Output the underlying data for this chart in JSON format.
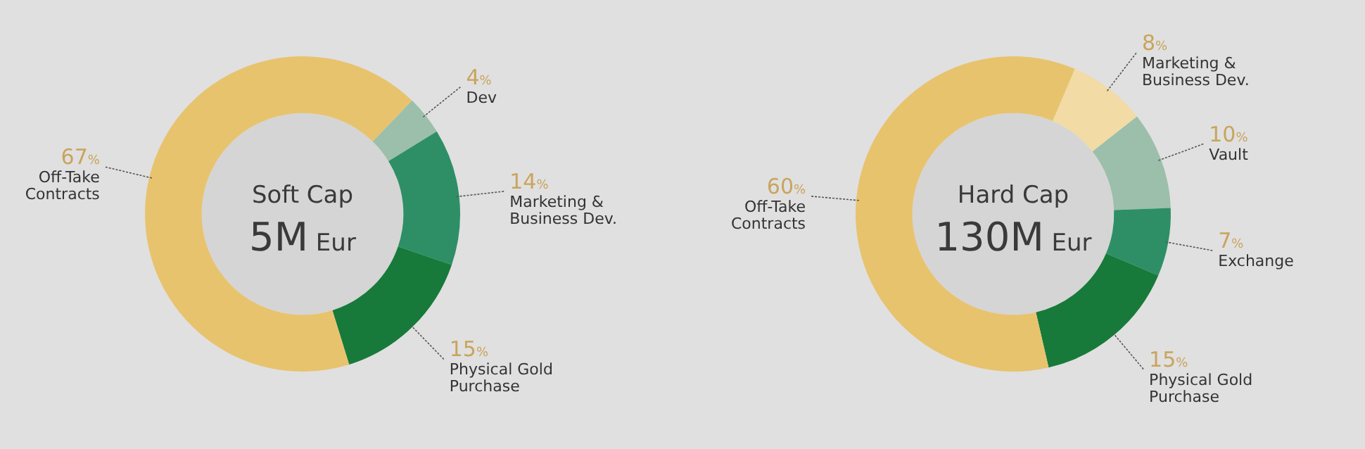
{
  "chart_data": [
    {
      "type": "donut",
      "title": "Soft Cap",
      "subtitle": "5M Eur",
      "categories": [
        "Dev",
        "Marketing & Business Dev.",
        "Physical Gold Purchase",
        "Off-Take Contracts"
      ],
      "values": [
        4,
        14,
        15,
        67
      ],
      "value_labels": [
        "4%",
        "14%",
        "15%",
        "67%"
      ],
      "colors": [
        "#9bbfaa",
        "#2e8f66",
        "#177a3a",
        "#e8c36e"
      ],
      "legend": false
    },
    {
      "type": "donut",
      "title": "Hard Cap",
      "subtitle": "130M Eur",
      "categories": [
        "Marketing & Business Dev.",
        "Vault",
        "Exchange",
        "Physical Gold Purchase",
        "Off-Take Contracts"
      ],
      "values": [
        8,
        10,
        7,
        15,
        60
      ],
      "value_labels": [
        "8%",
        "10%",
        "7%",
        "15%",
        "60%"
      ],
      "colors": [
        "#f2dba5",
        "#9bbfaa",
        "#2e8f66",
        "#177a3a",
        "#e8c36e"
      ],
      "legend": false
    }
  ]
}
